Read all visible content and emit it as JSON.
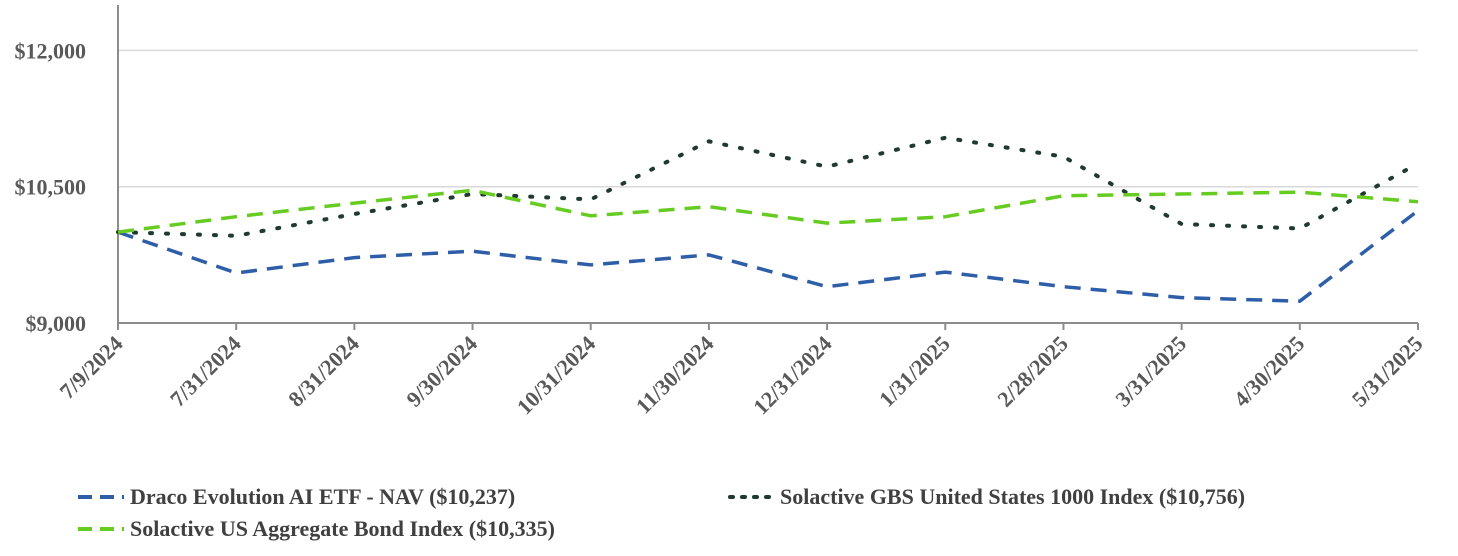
{
  "chart_data": {
    "type": "line",
    "x": [
      "7/9/2024",
      "7/31/2024",
      "8/31/2024",
      "9/30/2024",
      "10/31/2024",
      "11/30/2024",
      "12/31/2024",
      "1/31/2025",
      "2/28/2025",
      "3/31/2025",
      "4/30/2025",
      "5/31/2025"
    ],
    "ylim": [
      9000,
      12500
    ],
    "yticks": [
      9000,
      10500,
      12000
    ],
    "ytick_labels": [
      "$9,000",
      "$10,500",
      "$12,000"
    ],
    "grid": true,
    "legend_position": "bottom",
    "series": [
      {
        "name": "Draco Evolution AI ETF - NAV ($10,237)",
        "color": "#2E5EA8",
        "style": "dashed",
        "values": [
          10000,
          9550,
          9720,
          9790,
          9640,
          9750,
          9400,
          9560,
          9400,
          9280,
          9240,
          10237
        ]
      },
      {
        "name": "Solactive GBS United States 1000 Index ($10,756)",
        "color": "#1F3A2E",
        "style": "dotted",
        "values": [
          10000,
          9960,
          10200,
          10420,
          10360,
          11000,
          10720,
          11040,
          10830,
          10090,
          10040,
          10756
        ]
      },
      {
        "name": "Solactive US Aggregate Bond Index ($10,335)",
        "color": "#66CC22",
        "style": "dashed",
        "values": [
          10000,
          10170,
          10320,
          10460,
          10180,
          10280,
          10100,
          10170,
          10400,
          10420,
          10440,
          10335
        ]
      }
    ]
  }
}
